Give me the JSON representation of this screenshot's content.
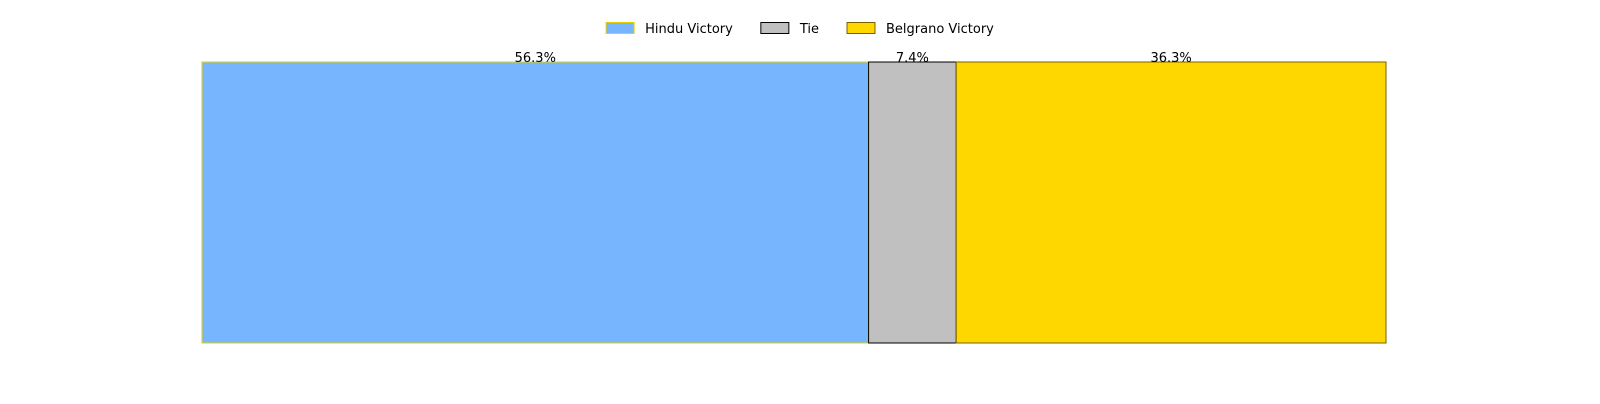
{
  "chart_data": {
    "type": "bar",
    "orientation": "horizontal-stacked-100",
    "title": "",
    "xlabel": "",
    "ylabel": "",
    "axes_visible": false,
    "grid": false,
    "legend_position": "top-center",
    "series": [
      {
        "name": "Hindu Victory",
        "value": 56.3,
        "label": "56.3%",
        "color": "#77b5fe",
        "edge_color": "#e6d200"
      },
      {
        "name": "Tie",
        "value": 7.4,
        "label": "7.4%",
        "color": "#c0c0c0",
        "edge_color": "#000000"
      },
      {
        "name": "Belgrano Victory",
        "value": 36.3,
        "label": "36.3%",
        "color": "#ffd700",
        "edge_color": "#7a6000"
      }
    ]
  }
}
